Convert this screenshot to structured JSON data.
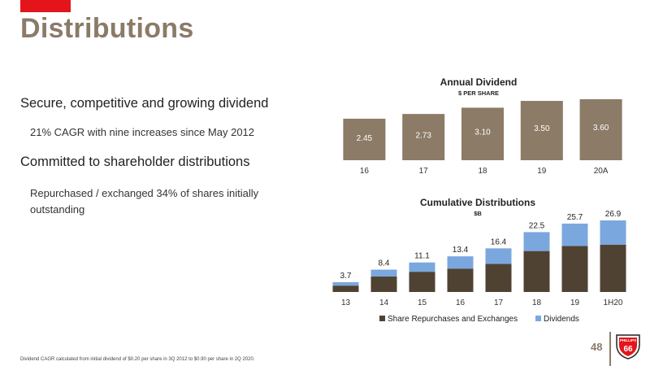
{
  "header": {
    "title": "Distributions"
  },
  "bullets": [
    {
      "level": 1,
      "text": "Secure, competitive and growing dividend"
    },
    {
      "level": 2,
      "text": "21% CAGR with nine increases since May 2012"
    },
    {
      "level": 1,
      "text": "Committed to shareholder distributions"
    },
    {
      "level": 2,
      "text": "Repurchased / exchanged 34% of shares initially"
    },
    {
      "level": 2,
      "text": "outstanding"
    }
  ],
  "footnote": "Dividend CAGR calculated from initial dividend of $0.20 per share in 3Q 2012 to $0.90 per share in 2Q 2020.",
  "page_number": "48",
  "logo": {
    "line1": "PHILLIPS",
    "line2": "66"
  },
  "colors": {
    "title": "#8a7b68",
    "bar_tan": "#8b7b67",
    "repurchase": "#4f4233",
    "dividends": "#7ba7df",
    "brand_red": "#e3151b"
  },
  "chart_data": [
    {
      "type": "bar",
      "title": "Annual Dividend",
      "subtitle": "$ PER SHARE",
      "categories": [
        "16",
        "17",
        "18",
        "19",
        "20A"
      ],
      "values": [
        2.45,
        2.73,
        3.1,
        3.5,
        3.6
      ],
      "labels": [
        "2.45",
        "2.73",
        "3.10",
        "3.50",
        "3.60"
      ],
      "ylim": [
        0,
        3.6
      ]
    },
    {
      "type": "bar",
      "stacked": true,
      "title": "Cumulative Distributions",
      "subtitle": "$B",
      "categories": [
        "13",
        "14",
        "15",
        "16",
        "17",
        "18",
        "19",
        "1H20"
      ],
      "totals": [
        "3.7",
        "8.4",
        "11.1",
        "13.4",
        "16.4",
        "22.5",
        "25.7",
        "26.9"
      ],
      "series": [
        {
          "name": "Share Repurchases and Exchanges",
          "values": [
            2.4,
            5.8,
            7.6,
            8.8,
            10.6,
            15.4,
            17.3,
            17.8
          ]
        },
        {
          "name": "Dividends",
          "values": [
            1.3,
            2.6,
            3.5,
            4.6,
            5.8,
            7.1,
            8.4,
            9.1
          ]
        }
      ],
      "legend": "bottom",
      "ylim": [
        0,
        26.9
      ]
    }
  ]
}
